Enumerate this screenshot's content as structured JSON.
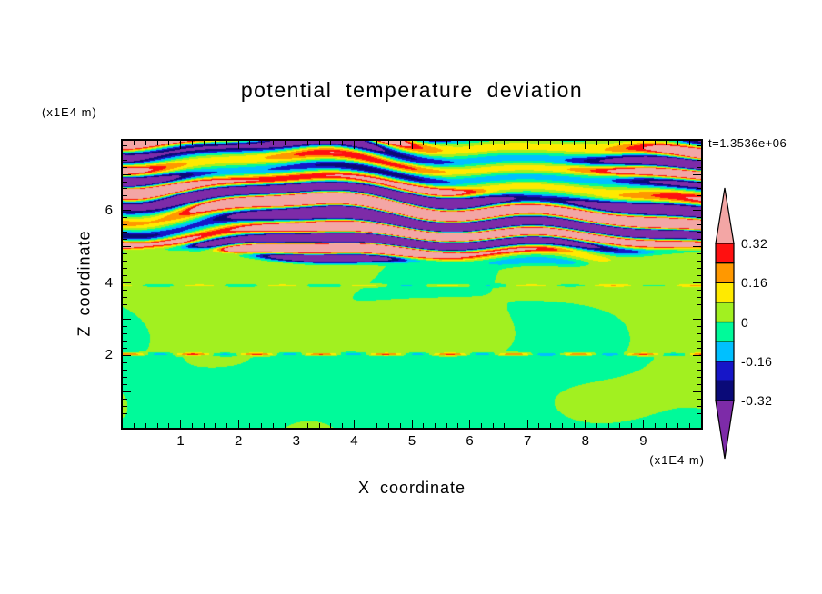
{
  "chart_data": {
    "type": "heatmap",
    "style": "filled-contour",
    "title": "potential temperature deviation",
    "time_annotation": "t=1.3536e+06",
    "xlabel": "X coordinate",
    "ylabel": "Z coordinate",
    "x_unit_label": "(x1E4 m)",
    "z_unit_label": "(x1E4 m)",
    "x_range": [
      0,
      10
    ],
    "z_range": [
      0,
      7.93
    ],
    "x_tick_values": [
      1,
      2,
      3,
      4,
      5,
      6,
      7,
      8,
      9
    ],
    "x_tick_labels": [
      "1",
      "2",
      "3",
      "4",
      "5",
      "6",
      "7",
      "8",
      "9"
    ],
    "z_tick_values": [
      2,
      4,
      6
    ],
    "z_tick_labels": [
      "2",
      "4",
      "6"
    ],
    "minor_tick_step": 0.2,
    "contour_levels": [
      -0.32,
      -0.24,
      -0.16,
      -0.08,
      0,
      0.08,
      0.16,
      0.24,
      0.32
    ],
    "colors": [
      "#7D2BA8",
      "#0A0A78",
      "#1616C8",
      "#00C0FF",
      "#00FA9A",
      "#A2F020",
      "#FFEA00",
      "#FF9800",
      "#FF1010",
      "#F3A6A5"
    ],
    "colorbar_labels": [
      {
        "text": "0.32",
        "level": 8
      },
      {
        "text": "0.16",
        "level": 6
      },
      {
        "text": "0",
        "level": 4
      },
      {
        "text": "-0.16",
        "level": 2
      },
      {
        "text": "-0.32",
        "level": 0
      }
    ],
    "regions": {
      "stripe_zone_base": 4.55,
      "streak_line_z": 2.03,
      "secondary_streak_z": 3.93
    }
  }
}
